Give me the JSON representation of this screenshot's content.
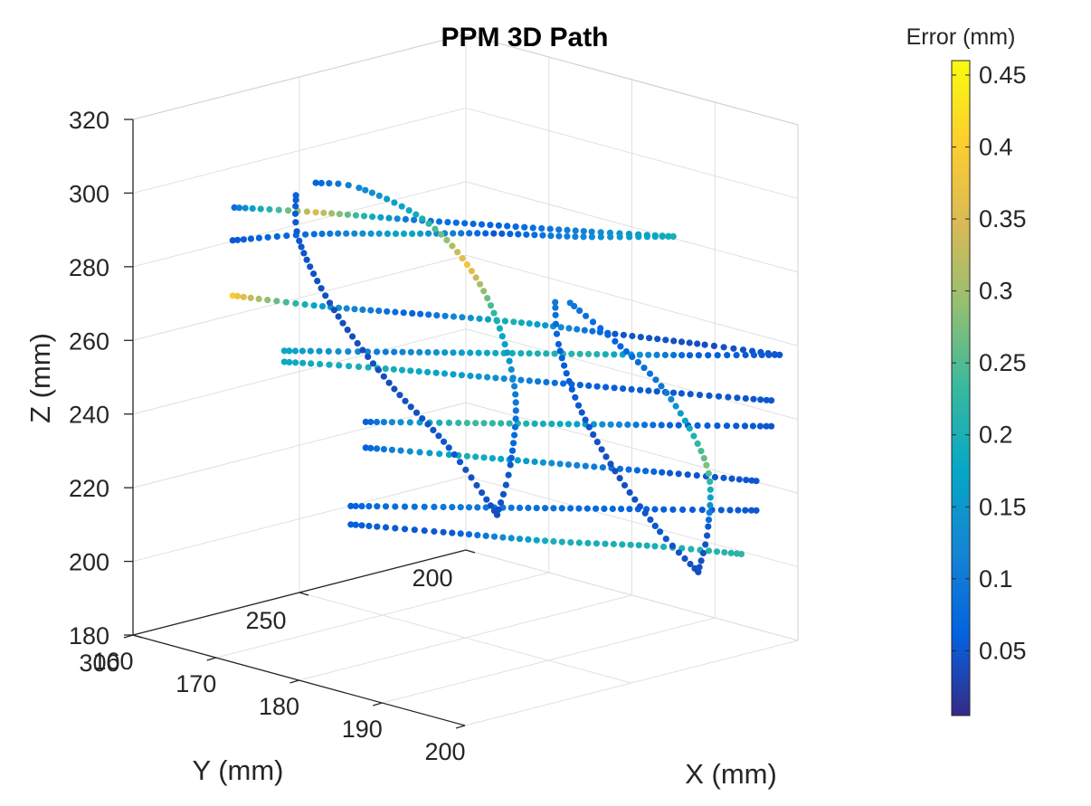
{
  "chart_data": {
    "type": "scatter3d",
    "title": "PPM 3D Path",
    "xlabel": "X (mm)",
    "ylabel": "Y (mm)",
    "zlabel": "Z (mm)",
    "xlim": [
      160,
      200
    ],
    "ylim": [
      200,
      300
    ],
    "zlim": [
      180,
      320
    ],
    "xticks": [
      "160",
      "170",
      "180",
      "190",
      "200"
    ],
    "yticks": [
      "200",
      "250",
      "300"
    ],
    "zticks": [
      "180",
      "200",
      "220",
      "240",
      "260",
      "280",
      "300",
      "320"
    ],
    "grid": true,
    "colorbar": {
      "label": "Error (mm)",
      "colormap": "parula",
      "range": [
        0.005,
        0.46
      ],
      "ticks": [
        "0.05",
        "0.1",
        "0.15",
        "0.2",
        "0.25",
        "0.3",
        "0.35",
        "0.4",
        "0.45"
      ]
    },
    "path_segments": [
      {
        "x": [
          165,
          170,
          176,
          182,
          188,
          193
        ],
        "y": [
          282,
          270,
          258,
          245,
          232,
          220
        ],
        "z": [
          295,
          294,
          293,
          292,
          291,
          290
        ],
        "error": [
          0.08,
          0.35,
          0.1,
          0.06,
          0.12,
          0.2
        ]
      },
      {
        "x": [
          193,
          187,
          181,
          175,
          169,
          164
        ],
        "y": [
          220,
          232,
          244,
          256,
          268,
          280
        ],
        "z": [
          290,
          289,
          289,
          288,
          287,
          285
        ],
        "error": [
          0.2,
          0.12,
          0.05,
          0.18,
          0.08,
          0.05
        ]
      },
      {
        "x": [
          164,
          170,
          176,
          183,
          190,
          196,
          201
        ],
        "y": [
          280,
          268,
          256,
          243,
          230,
          218,
          208
        ],
        "z": [
          270,
          268,
          267,
          266,
          264,
          262,
          260
        ],
        "error": [
          0.4,
          0.15,
          0.06,
          0.2,
          0.05,
          0.04,
          0.05
        ]
      },
      {
        "x": [
          201,
          195,
          188,
          181,
          174,
          167
        ],
        "y": [
          208,
          220,
          233,
          246,
          259,
          272
        ],
        "z": [
          260,
          259,
          258,
          257,
          256,
          255
        ],
        "error": [
          0.05,
          0.06,
          0.22,
          0.18,
          0.1,
          0.18
        ]
      },
      {
        "x": [
          167,
          173,
          180,
          187,
          194,
          200
        ],
        "y": [
          272,
          259,
          246,
          233,
          220,
          208
        ],
        "z": [
          252,
          251,
          250,
          249,
          248,
          247
        ],
        "error": [
          0.18,
          0.2,
          0.15,
          0.06,
          0.05,
          0.05
        ]
      },
      {
        "x": [
          200,
          193,
          186,
          179,
          172
        ],
        "y": [
          208,
          221,
          234,
          247,
          260
        ],
        "z": [
          240,
          239,
          238,
          237,
          236
        ],
        "error": [
          0.05,
          0.06,
          0.18,
          0.24,
          0.06
        ]
      },
      {
        "x": [
          172,
          179,
          186,
          193,
          199
        ],
        "y": [
          260,
          247,
          234,
          221,
          210
        ],
        "z": [
          229,
          228,
          227,
          226,
          225
        ],
        "error": [
          0.06,
          0.2,
          0.12,
          0.05,
          0.05
        ]
      },
      {
        "x": [
          199,
          192,
          185,
          178,
          171
        ],
        "y": [
          210,
          223,
          236,
          249,
          262
        ],
        "z": [
          217,
          216,
          215,
          214,
          213
        ],
        "error": [
          0.05,
          0.06,
          0.08,
          0.1,
          0.06
        ]
      },
      {
        "x": [
          171,
          178,
          185,
          192,
          198
        ],
        "y": [
          262,
          249,
          236,
          223,
          212
        ],
        "z": [
          208,
          207,
          206,
          206,
          205
        ],
        "error": [
          0.06,
          0.05,
          0.2,
          0.2,
          0.22
        ]
      },
      {
        "x": [
          170,
          168,
          169,
          172,
          176,
          179
        ],
        "y": [
          276,
          270,
          262,
          253,
          245,
          238
        ],
        "z": [
          300,
          285,
          265,
          245,
          228,
          210
        ],
        "error": [
          0.06,
          0.05,
          0.04,
          0.04,
          0.05,
          0.04
        ]
      },
      {
        "x": [
          179,
          181,
          182,
          181,
          179,
          176,
          172,
          170
        ],
        "y": [
          238,
          239,
          240,
          243,
          247,
          253,
          262,
          270
        ],
        "z": [
          210,
          225,
          245,
          265,
          280,
          292,
          300,
          302
        ],
        "error": [
          0.04,
          0.05,
          0.1,
          0.2,
          0.38,
          0.2,
          0.12,
          0.06
        ]
      },
      {
        "x": [
          186,
          184,
          184,
          186,
          189,
          192
        ],
        "y": [
          238,
          232,
          226,
          220,
          214,
          210
        ],
        "z": [
          272,
          258,
          240,
          222,
          206,
          196
        ],
        "error": [
          0.1,
          0.06,
          0.05,
          0.04,
          0.05,
          0.04
        ]
      },
      {
        "x": [
          192,
          194,
          195,
          193,
          190,
          187
        ],
        "y": [
          210,
          212,
          215,
          222,
          230,
          236
        ],
        "z": [
          196,
          210,
          228,
          248,
          262,
          272
        ],
        "error": [
          0.04,
          0.05,
          0.28,
          0.1,
          0.06,
          0.1
        ]
      }
    ]
  }
}
